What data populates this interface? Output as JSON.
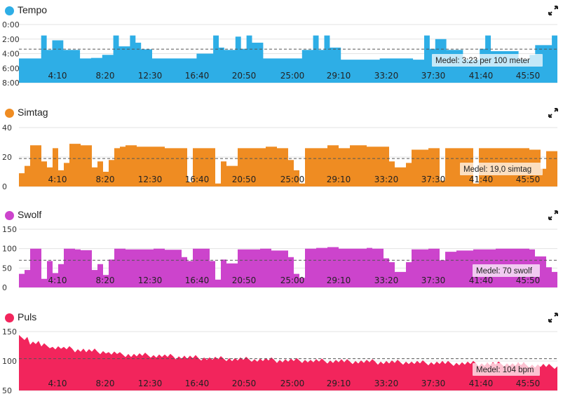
{
  "chart_data": [
    {
      "key": "pace",
      "type": "area",
      "title": "Tempo",
      "color": "#2eaee6",
      "inverted": true,
      "ylim": [
        0,
        480
      ],
      "yticks": [
        {
          "v": 0,
          "label": "0:00"
        },
        {
          "v": 120,
          "label": "2:00"
        },
        {
          "v": 240,
          "label": "4:00"
        },
        {
          "v": 360,
          "label": "6:00"
        },
        {
          "v": 480,
          "label": "8:00"
        }
      ],
      "xticks": [
        "4:10",
        "8:20",
        "12:30",
        "16:40",
        "20:50",
        "25:00",
        "29:10",
        "33:20",
        "37:30",
        "41:40",
        "45:50"
      ],
      "xlim_min": [
        0,
        47.6
      ],
      "avg_value": 203,
      "avg_label": "Medel: 3:23 per 100 meter",
      "values": [
        280,
        280,
        280,
        280,
        90,
        210,
        130,
        130,
        210,
        210,
        210,
        280,
        280,
        275,
        275,
        250,
        250,
        90,
        180,
        180,
        90,
        150,
        205,
        205,
        280,
        280,
        280,
        280,
        280,
        280,
        280,
        280,
        240,
        240,
        240,
        90,
        190,
        210,
        210,
        100,
        200,
        90,
        150,
        150,
        280,
        280,
        280,
        280,
        280,
        280,
        280,
        210,
        210,
        90,
        210,
        90,
        190,
        190,
        290,
        290,
        290,
        290,
        290,
        290,
        290,
        280,
        280,
        280,
        280,
        280,
        280,
        290,
        290,
        90,
        200,
        120,
        120,
        210,
        210,
        210,
        290,
        290,
        290,
        200,
        90,
        220,
        220,
        220,
        220,
        220,
        290,
        290,
        250,
        170,
        170,
        170,
        90
      ],
      "gaps": []
    },
    {
      "key": "strokes",
      "type": "area",
      "title": "Simtag",
      "color": "#ef8c22",
      "inverted": false,
      "ylim": [
        0,
        40
      ],
      "yticks": [
        {
          "v": 0,
          "label": "0"
        },
        {
          "v": 20,
          "label": "20"
        },
        {
          "v": 40,
          "label": "40"
        }
      ],
      "xticks": [
        "4:10",
        "8:20",
        "12:30",
        "16:40",
        "20:50",
        "25:00",
        "29:10",
        "33:20",
        "37:30",
        "41:40",
        "45:50"
      ],
      "xlim_min": [
        0,
        47.6
      ],
      "avg_value": 19.0,
      "avg_label": "Medel: 19,0 simtag",
      "values": [
        9,
        14,
        28,
        28,
        17,
        13,
        26,
        11,
        16,
        29,
        29,
        28,
        28,
        13,
        17,
        10,
        18,
        26,
        27,
        28,
        28,
        27,
        27,
        27,
        27,
        27,
        26,
        26,
        26,
        26,
        3,
        26,
        26,
        26,
        26,
        2,
        17,
        14,
        14,
        26,
        26,
        26,
        26,
        26,
        27,
        27,
        26,
        26,
        18,
        11,
        2,
        26,
        26,
        26,
        26,
        28,
        28,
        26,
        26,
        28,
        28,
        28,
        27,
        27,
        27,
        27,
        17,
        13,
        13,
        16,
        25,
        25,
        25,
        26,
        26,
        4,
        26,
        26,
        26,
        26,
        26,
        2,
        26,
        26,
        26,
        26,
        26,
        26,
        26,
        26,
        26,
        25,
        25,
        12,
        24,
        24
      ],
      "gaps": []
    },
    {
      "key": "swolf",
      "type": "area",
      "title": "Swolf",
      "color": "#cc44cc",
      "inverted": false,
      "ylim": [
        0,
        150
      ],
      "yticks": [
        {
          "v": 0,
          "label": "0"
        },
        {
          "v": 50,
          "label": "50"
        },
        {
          "v": 100,
          "label": "100"
        },
        {
          "v": 150,
          "label": "150"
        }
      ],
      "xticks": [
        "4:10",
        "8:20",
        "12:30",
        "16:40",
        "20:50",
        "25:00",
        "29:10",
        "33:20",
        "37:30",
        "41:40",
        "45:50"
      ],
      "xlim_min": [
        0,
        47.6
      ],
      "avg_value": 70,
      "avg_label": "Medel: 70 swolf",
      "values": [
        35,
        45,
        100,
        100,
        22,
        68,
        37,
        60,
        100,
        100,
        98,
        96,
        96,
        45,
        60,
        32,
        72,
        100,
        100,
        98,
        98,
        98,
        98,
        98,
        100,
        100,
        97,
        97,
        97,
        78,
        68,
        100,
        100,
        100,
        68,
        20,
        72,
        62,
        62,
        98,
        98,
        98,
        98,
        100,
        100,
        95,
        95,
        95,
        78,
        35,
        25,
        100,
        100,
        102,
        102,
        104,
        104,
        100,
        100,
        100,
        100,
        100,
        102,
        100,
        100,
        75,
        65,
        40,
        40,
        65,
        98,
        98,
        98,
        100,
        100,
        70,
        92,
        92,
        95,
        95,
        95,
        98,
        98,
        98,
        98,
        100,
        100,
        100,
        100,
        100,
        100,
        98,
        80,
        80,
        52,
        40
      ],
      "gaps": []
    },
    {
      "key": "hr",
      "type": "area",
      "title": "Puls",
      "color": "#f2255c",
      "inverted": false,
      "ylim": [
        50,
        150
      ],
      "yticks": [
        {
          "v": 50,
          "label": "50"
        },
        {
          "v": 100,
          "label": "100"
        },
        {
          "v": 150,
          "label": "150"
        }
      ],
      "xticks": [
        "4:10",
        "8:20",
        "12:30",
        "16:40",
        "20:50",
        "25:00",
        "29:10",
        "33:20",
        "37:30",
        "41:40",
        "45:50"
      ],
      "xlim_min": [
        0,
        47.6
      ],
      "avg_value": 104,
      "avg_label": "Medel: 104 bpm",
      "values": [
        140,
        131,
        126,
        123,
        121,
        119,
        117,
        116,
        113,
        111,
        110,
        110,
        109,
        108,
        107,
        106,
        105,
        104,
        104,
        103,
        103,
        102,
        102,
        101,
        101,
        101,
        100,
        100,
        100,
        99,
        99,
        99,
        98,
        98,
        98,
        97,
        97,
        97,
        96,
        96,
        96,
        95,
        95,
        95,
        94,
        93,
        92,
        91
      ],
      "gaps": []
    }
  ],
  "ui": {
    "expand_icon": "expand-arrows-icon"
  }
}
